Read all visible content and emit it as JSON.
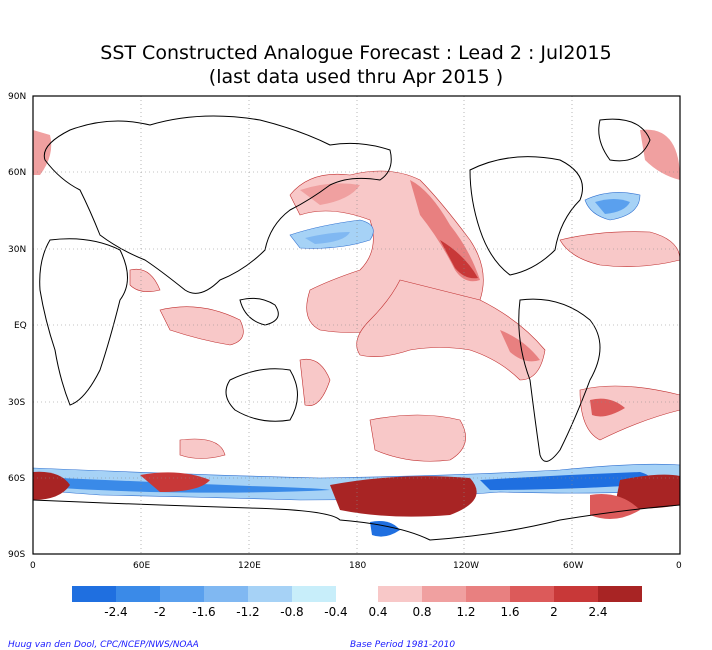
{
  "title": {
    "line1": "SST Constructed Analogue Forecast : Lead 2 : Jul2015",
    "line2": "(last data used thru Apr 2015 )"
  },
  "axes": {
    "lat_labels": [
      "90N",
      "60N",
      "30N",
      "EQ",
      "30S",
      "60S",
      "90S"
    ],
    "lon_labels": [
      "0",
      "60E",
      "120E",
      "180",
      "120W",
      "60W",
      "0"
    ]
  },
  "colorbar": {
    "negative_colors": [
      "#1f6fe0",
      "#3a8ae8",
      "#5aa0ee",
      "#80b8f2",
      "#a6d2f6",
      "#c8eefa"
    ],
    "positive_colors": [
      "#f8c8c8",
      "#f0a0a0",
      "#e88080",
      "#dc5a5a",
      "#c83838",
      "#a82424"
    ],
    "negative_labels": [
      "-2.4",
      "-2",
      "-1.6",
      "-1.2",
      "-0.8",
      "-0.4"
    ],
    "positive_labels": [
      "0.4",
      "0.8",
      "1.2",
      "1.6",
      "2",
      "2.4"
    ]
  },
  "credits": {
    "left": "Huug van den Dool, CPC/NCEP/NWS/NOAA",
    "right": "Base Period 1981-2010"
  }
}
